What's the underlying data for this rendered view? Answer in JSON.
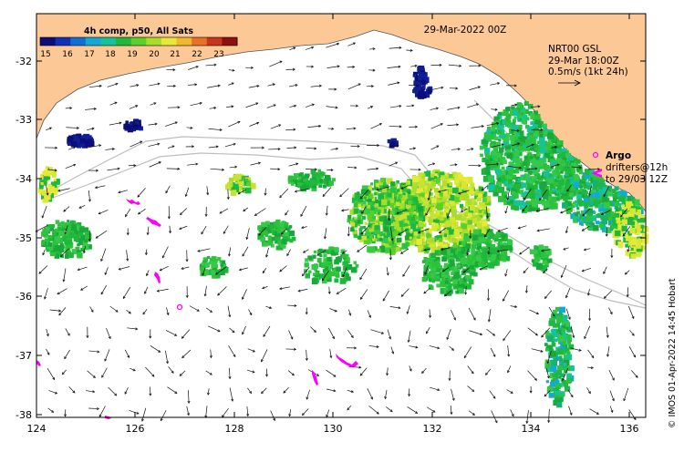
{
  "header": {
    "date_label": "29-Mar-2022 00Z"
  },
  "colorbar": {
    "title": "4h comp, p50, All Sats",
    "ticks": [
      "15",
      "16",
      "17",
      "18",
      "19",
      "20",
      "21",
      "22",
      "23"
    ],
    "colors": [
      "#0b0d7a",
      "#1030b8",
      "#0f6fd6",
      "#14a8d8",
      "#16c29a",
      "#1fb83c",
      "#5ccf2a",
      "#a9dd2c",
      "#e6e83a",
      "#f0b830",
      "#e8702a",
      "#c83420",
      "#8c1010"
    ]
  },
  "legend": {
    "model_line1": "NRT00 GSL",
    "model_line2": "29-Mar 18:00Z",
    "scale_label": "0.5m/s (1kt 24h)",
    "argo_label": "Argo",
    "drifters_line1": "drifters@12h",
    "drifters_line2": "to 29/03 12Z"
  },
  "axes": {
    "x_ticks": [
      "124",
      "126",
      "128",
      "130",
      "132",
      "134",
      "136"
    ],
    "y_ticks": [
      "-32",
      "-33",
      "-34",
      "-35",
      "-36",
      "-37",
      "-38"
    ]
  },
  "credit": "© IMOS 01-Apr-2022 14:45 Hobart",
  "colors": {
    "land": "#fbc896",
    "sst_green": "#1fb83c",
    "sst_yellow": "#d8e832",
    "drifter": "#ff00ff",
    "arrow": "#111111"
  }
}
